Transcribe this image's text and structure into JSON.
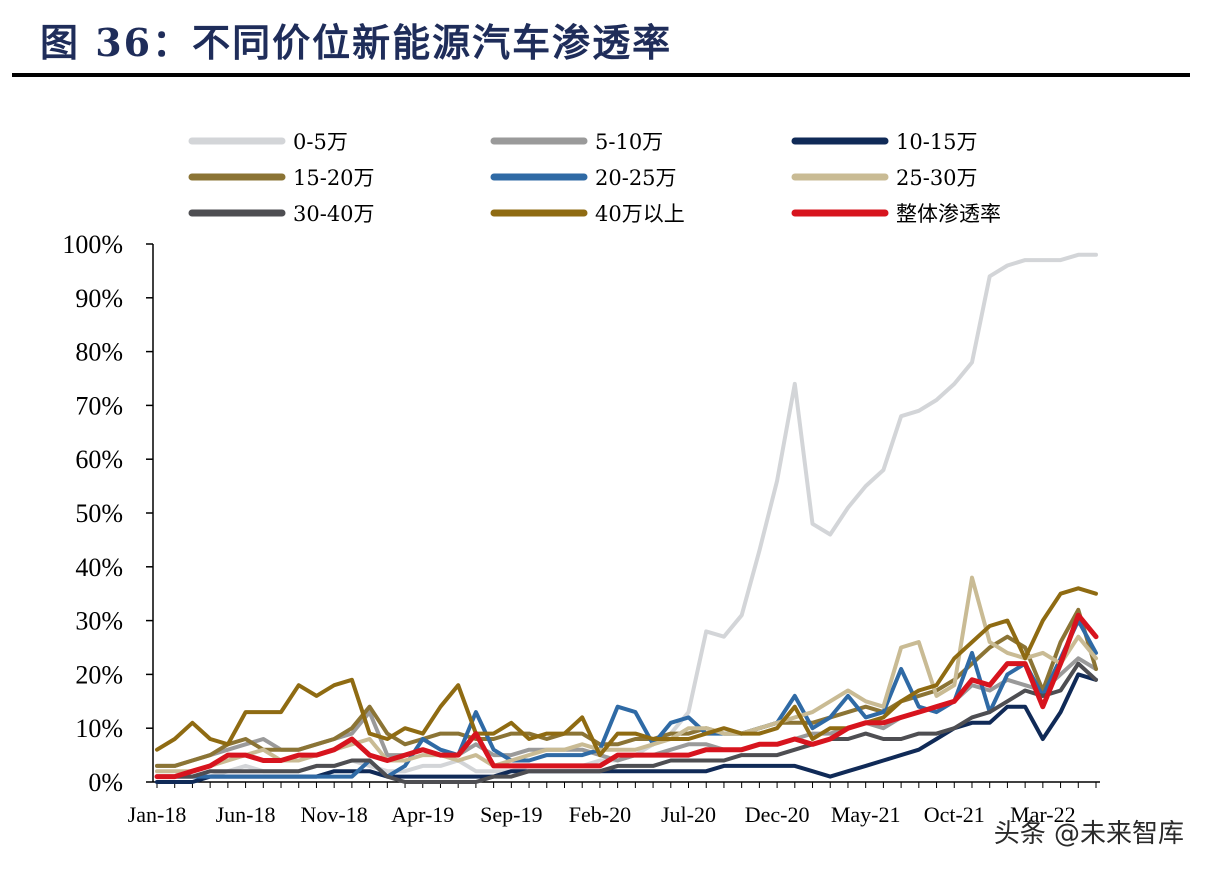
{
  "header": {
    "title": "图 36：不同价位新能源汽车渗透率"
  },
  "watermark": "头条 @未来智库",
  "chart_data": {
    "type": "line",
    "title": "",
    "xlabel": "",
    "ylabel": "",
    "ylim": [
      0,
      100
    ],
    "y_ticks": [
      "0%",
      "10%",
      "20%",
      "30%",
      "40%",
      "50%",
      "60%",
      "70%",
      "80%",
      "90%",
      "100%"
    ],
    "x_tick_labels": [
      "Jan-18",
      "Jun-18",
      "Nov-18",
      "Apr-19",
      "Sep-19",
      "Feb-20",
      "Jul-20",
      "Dec-20",
      "May-21",
      "Oct-21",
      "Mar-22"
    ],
    "x_tick_positions": [
      0,
      5,
      10,
      15,
      20,
      25,
      30,
      35,
      40,
      45,
      50
    ],
    "grid": false,
    "legend_position": "top",
    "series": [
      {
        "name": "0-5万",
        "color": "#d3d5d8",
        "width": 4,
        "values": [
          1,
          1,
          1,
          1,
          2,
          3,
          2,
          2,
          2,
          3,
          3,
          4,
          3,
          2,
          2,
          3,
          3,
          4,
          2,
          2,
          2,
          3,
          3,
          3,
          3,
          4,
          4,
          5,
          7,
          9,
          13,
          28,
          27,
          31,
          43,
          56,
          74,
          48,
          46,
          51,
          55,
          58,
          68,
          69,
          71,
          74,
          78,
          94,
          96,
          97,
          97,
          97,
          98,
          98
        ]
      },
      {
        "name": "5-10万",
        "color": "#9a9a9a",
        "width": 4,
        "values": [
          3,
          3,
          4,
          5,
          6,
          7,
          8,
          6,
          6,
          7,
          8,
          9,
          13,
          5,
          5,
          6,
          5,
          5,
          7,
          5,
          5,
          6,
          6,
          6,
          6,
          5,
          4,
          5,
          5,
          6,
          7,
          7,
          6,
          6,
          7,
          7,
          8,
          9,
          9,
          10,
          11,
          10,
          12,
          13,
          14,
          15,
          18,
          17,
          19,
          18,
          17,
          20,
          23,
          21
        ]
      },
      {
        "name": "10-15万",
        "color": "#102a57",
        "width": 4,
        "values": [
          0,
          0,
          0,
          1,
          1,
          1,
          1,
          1,
          1,
          1,
          2,
          2,
          2,
          1,
          1,
          1,
          1,
          1,
          1,
          1,
          2,
          2,
          2,
          2,
          2,
          2,
          2,
          2,
          2,
          2,
          2,
          2,
          3,
          3,
          3,
          3,
          3,
          2,
          1,
          2,
          3,
          4,
          5,
          6,
          8,
          10,
          11,
          11,
          14,
          14,
          8,
          13,
          20,
          19
        ]
      },
      {
        "name": "15-20万",
        "color": "#8b7435",
        "width": 4,
        "values": [
          3,
          3,
          4,
          5,
          7,
          8,
          6,
          6,
          6,
          7,
          8,
          10,
          14,
          9,
          7,
          8,
          9,
          9,
          8,
          8,
          9,
          9,
          8,
          9,
          9,
          7,
          7,
          8,
          8,
          9,
          9,
          10,
          9,
          9,
          10,
          11,
          11,
          11,
          12,
          13,
          14,
          13,
          15,
          16,
          17,
          19,
          22,
          25,
          27,
          25,
          17,
          26,
          32,
          21
        ]
      },
      {
        "name": "20-25万",
        "color": "#2f6aa5",
        "width": 4,
        "values": [
          1,
          1,
          1,
          1,
          1,
          1,
          1,
          1,
          1,
          1,
          1,
          1,
          4,
          1,
          3,
          8,
          6,
          5,
          13,
          6,
          4,
          4,
          5,
          5,
          5,
          6,
          14,
          13,
          7,
          11,
          12,
          9,
          9,
          9,
          10,
          11,
          16,
          10,
          12,
          16,
          12,
          13,
          21,
          14,
          13,
          15,
          24,
          13,
          20,
          22,
          16,
          23,
          30,
          24
        ]
      },
      {
        "name": "25-30万",
        "color": "#c9bb94",
        "width": 4,
        "values": [
          2,
          2,
          2,
          3,
          4,
          5,
          6,
          4,
          4,
          5,
          6,
          7,
          8,
          4,
          4,
          5,
          5,
          4,
          5,
          3,
          4,
          5,
          6,
          6,
          7,
          6,
          6,
          6,
          7,
          8,
          10,
          10,
          9,
          9,
          10,
          11,
          12,
          13,
          15,
          17,
          15,
          14,
          25,
          26,
          16,
          18,
          38,
          26,
          24,
          23,
          24,
          22,
          27,
          23
        ]
      },
      {
        "name": "30-40万",
        "color": "#4e4e52",
        "width": 4,
        "values": [
          1,
          1,
          1,
          2,
          2,
          2,
          2,
          2,
          2,
          3,
          3,
          4,
          4,
          1,
          0,
          0,
          0,
          0,
          0,
          1,
          1,
          2,
          2,
          2,
          2,
          2,
          3,
          3,
          3,
          4,
          4,
          4,
          4,
          5,
          5,
          5,
          6,
          7,
          8,
          8,
          9,
          8,
          8,
          9,
          9,
          10,
          12,
          13,
          15,
          17,
          16,
          17,
          22,
          19
        ]
      },
      {
        "name": "40万以上",
        "color": "#8f6b12",
        "width": 4,
        "values": [
          6,
          8,
          11,
          8,
          7,
          13,
          13,
          13,
          18,
          16,
          18,
          19,
          9,
          8,
          10,
          9,
          14,
          18,
          9,
          9,
          11,
          8,
          9,
          9,
          12,
          5,
          9,
          9,
          8,
          8,
          8,
          9,
          10,
          9,
          9,
          10,
          14,
          8,
          10,
          10,
          11,
          12,
          15,
          17,
          18,
          23,
          26,
          29,
          30,
          23,
          30,
          35,
          36,
          35
        ]
      },
      {
        "name": "整体渗透率",
        "color": "#d7141e",
        "width": 5,
        "values": [
          1,
          1,
          2,
          3,
          5,
          5,
          4,
          4,
          5,
          5,
          6,
          8,
          5,
          4,
          5,
          6,
          5,
          5,
          9,
          3,
          3,
          3,
          3,
          3,
          3,
          3,
          5,
          5,
          5,
          5,
          5,
          6,
          6,
          6,
          7,
          7,
          8,
          7,
          8,
          10,
          11,
          11,
          12,
          13,
          14,
          15,
          19,
          18,
          22,
          22,
          14,
          22,
          31,
          27
        ]
      }
    ]
  }
}
